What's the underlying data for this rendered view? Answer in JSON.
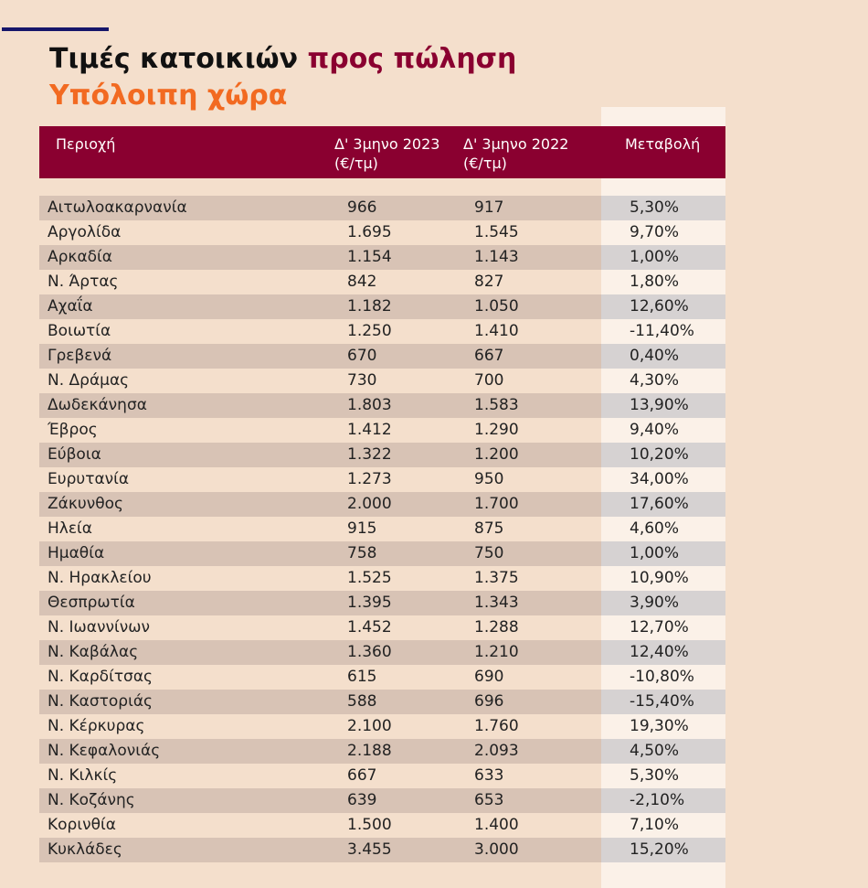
{
  "title": {
    "part1": "Τιμές κατοικιών ",
    "part2": "προς πώληση",
    "line2": "Υπόλοιπη χώρα"
  },
  "colors": {
    "header_bg": "#8a0030",
    "subtitle": "#f26a21",
    "page_bg": "#f4dfcc",
    "accent_line": "#16166a"
  },
  "chart_data": {
    "type": "table",
    "columns": [
      "Περιοχή",
      "Δ' 3μηνο 2023\n(€/τμ)",
      "Δ' 3μηνο 2022\n(€/τμ)",
      "Μεταβολή"
    ],
    "rows": [
      [
        "Αιτωλοακαρνανία",
        "966",
        "917",
        "5,30%"
      ],
      [
        "Αργολίδα",
        "1.695",
        "1.545",
        "9,70%"
      ],
      [
        "Αρκαδία",
        "1.154",
        "1.143",
        "1,00%"
      ],
      [
        "Ν. Άρτας",
        "842",
        "827",
        "1,80%"
      ],
      [
        "Αχαΐα",
        "1.182",
        "1.050",
        "12,60%"
      ],
      [
        "Βοιωτία",
        "1.250",
        "1.410",
        "-11,40%"
      ],
      [
        "Γρεβενά",
        "670",
        "667",
        "0,40%"
      ],
      [
        "Ν. Δράμας",
        "730",
        "700",
        "4,30%"
      ],
      [
        "Δωδεκάνησα",
        "1.803",
        "1.583",
        "13,90%"
      ],
      [
        "Έβρος",
        "1.412",
        "1.290",
        "9,40%"
      ],
      [
        "Εύβοια",
        "1.322",
        "1.200",
        "10,20%"
      ],
      [
        "Ευρυτανία",
        "1.273",
        "950",
        "34,00%"
      ],
      [
        "Ζάκυνθος",
        "2.000",
        "1.700",
        "17,60%"
      ],
      [
        "Ηλεία",
        "915",
        "875",
        "4,60%"
      ],
      [
        "Ημαθία",
        "758",
        "750",
        "1,00%"
      ],
      [
        "Ν. Ηρακλείου",
        "1.525",
        "1.375",
        "10,90%"
      ],
      [
        "Θεσπρωτία",
        "1.395",
        "1.343",
        "3,90%"
      ],
      [
        "Ν. Ιωαννίνων",
        "1.452",
        "1.288",
        "12,70%"
      ],
      [
        "Ν. Καβάλας",
        "1.360",
        "1.210",
        "12,40%"
      ],
      [
        "Ν. Καρδίτσας",
        "615",
        "690",
        "-10,80%"
      ],
      [
        "Ν. Καστοριάς",
        "588",
        "696",
        "-15,40%"
      ],
      [
        "Ν. Κέρκυρας",
        "2.100",
        "1.760",
        "19,30%"
      ],
      [
        "Ν. Κεφαλονιάς",
        "2.188",
        "2.093",
        "4,50%"
      ],
      [
        "Ν. Κιλκίς",
        "667",
        "633",
        "5,30%"
      ],
      [
        "Ν. Κοζάνης",
        "639",
        "653",
        "-2,10%"
      ],
      [
        "Κορινθία",
        "1.500",
        "1.400",
        "7,10%"
      ],
      [
        "Κυκλάδες",
        "3.455",
        "3.000",
        "15,20%"
      ]
    ]
  }
}
